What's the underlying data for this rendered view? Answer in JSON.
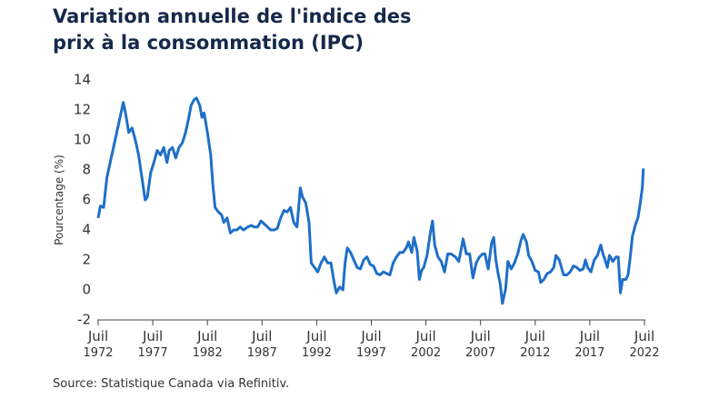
{
  "chart_data": {
    "type": "line",
    "title": "Variation annuelle de l'indice des prix à la consommation (IPC)",
    "y_label": "Pourcentage (%)",
    "source": "Source: Statistique Canada via Refinitiv.",
    "xlim": [
      1972.5,
      2022.5
    ],
    "ylim": [
      -2,
      14
    ],
    "yticks": [
      -2,
      0,
      2,
      4,
      6,
      8,
      10,
      12,
      14
    ],
    "xticks": [
      {
        "value": 1972.5,
        "label": "Juil 1972"
      },
      {
        "value": 1977.5,
        "label": "Juil 1977"
      },
      {
        "value": 1982.5,
        "label": "Juil 1982"
      },
      {
        "value": 1987.5,
        "label": "Juil 1987"
      },
      {
        "value": 1992.5,
        "label": "Juil 1992"
      },
      {
        "value": 1997.5,
        "label": "Juil 1997"
      },
      {
        "value": 2002.5,
        "label": "Juil 2002"
      },
      {
        "value": 2007.5,
        "label": "Juil 2007"
      },
      {
        "value": 2012.5,
        "label": "Juil 2012"
      },
      {
        "value": 2017.5,
        "label": "Juil 2017"
      },
      {
        "value": 2022.5,
        "label": "Juil 2022"
      }
    ],
    "x": [
      1972.5,
      1972.7,
      1973.0,
      1973.3,
      1973.6,
      1973.9,
      1974.2,
      1974.5,
      1974.8,
      1975.0,
      1975.3,
      1975.6,
      1975.9,
      1976.2,
      1976.5,
      1976.8,
      1977.0,
      1977.3,
      1977.6,
      1977.9,
      1978.2,
      1978.5,
      1978.8,
      1979.0,
      1979.3,
      1979.6,
      1979.9,
      1980.2,
      1980.5,
      1980.8,
      1981.0,
      1981.3,
      1981.5,
      1981.8,
      1982.0,
      1982.2,
      1982.5,
      1982.8,
      1983.0,
      1983.2,
      1983.5,
      1983.8,
      1984.0,
      1984.3,
      1984.6,
      1984.9,
      1985.2,
      1985.5,
      1985.8,
      1986.2,
      1986.5,
      1986.8,
      1987.1,
      1987.4,
      1987.7,
      1988.0,
      1988.3,
      1988.6,
      1988.9,
      1989.2,
      1989.5,
      1989.8,
      1990.1,
      1990.4,
      1990.7,
      1991.0,
      1991.2,
      1991.5,
      1991.8,
      1992.0,
      1992.3,
      1992.6,
      1992.9,
      1993.2,
      1993.5,
      1993.8,
      1994.1,
      1994.3,
      1994.6,
      1994.9,
      1995.1,
      1995.3,
      1995.6,
      1995.9,
      1996.2,
      1996.5,
      1996.8,
      1997.1,
      1997.4,
      1997.7,
      1998.0,
      1998.3,
      1998.6,
      1998.9,
      1999.2,
      1999.5,
      1999.8,
      2000.1,
      2000.4,
      2000.7,
      2000.9,
      2001.2,
      2001.4,
      2001.7,
      2001.9,
      2002.1,
      2002.3,
      2002.6,
      2002.9,
      2003.1,
      2003.3,
      2003.6,
      2003.9,
      2004.2,
      2004.5,
      2004.8,
      2005.2,
      2005.5,
      2005.7,
      2005.9,
      2006.2,
      2006.5,
      2006.8,
      2007.1,
      2007.4,
      2007.7,
      2007.9,
      2008.2,
      2008.5,
      2008.7,
      2008.9,
      2009.1,
      2009.3,
      2009.5,
      2009.8,
      2010.0,
      2010.3,
      2010.6,
      2010.9,
      2011.2,
      2011.4,
      2011.7,
      2011.9,
      2012.2,
      2012.5,
      2012.8,
      2013.0,
      2013.3,
      2013.6,
      2013.9,
      2014.2,
      2014.4,
      2014.7,
      2014.9,
      2015.1,
      2015.4,
      2015.7,
      2016.0,
      2016.3,
      2016.6,
      2016.9,
      2017.1,
      2017.3,
      2017.6,
      2017.9,
      2018.2,
      2018.5,
      2018.7,
      2018.9,
      2019.1,
      2019.3,
      2019.6,
      2019.9,
      2020.1,
      2020.3,
      2020.5,
      2020.8,
      2021.0,
      2021.2,
      2021.4,
      2021.7,
      2021.9,
      2022.1,
      2022.3,
      2022.4
    ],
    "series": [
      {
        "name": "IPC",
        "color": "#1f6fc8",
        "values": [
          4.8,
          5.6,
          5.5,
          7.5,
          8.5,
          9.5,
          10.5,
          11.5,
          12.5,
          11.8,
          10.5,
          10.8,
          10,
          9,
          7.5,
          6,
          6.2,
          7.8,
          8.5,
          9.3,
          9,
          9.5,
          8.5,
          9.3,
          9.5,
          8.8,
          9.5,
          9.8,
          10.5,
          11.5,
          12.3,
          12.7,
          12.8,
          12.3,
          11.5,
          11.8,
          10.5,
          9,
          7,
          5.5,
          5.2,
          5,
          4.5,
          4.8,
          3.8,
          4,
          4,
          4.2,
          4,
          4.2,
          4.3,
          4.2,
          4.2,
          4.6,
          4.4,
          4.2,
          4,
          4,
          4.1,
          4.8,
          5.3,
          5.2,
          5.5,
          4.5,
          4.2,
          6.8,
          6.2,
          5.8,
          4.5,
          1.8,
          1.5,
          1.2,
          1.8,
          2.2,
          1.8,
          1.8,
          0.5,
          -0.2,
          0.2,
          0,
          1.8,
          2.8,
          2.5,
          2,
          1.5,
          1.4,
          2,
          2.2,
          1.7,
          1.6,
          1.1,
          1,
          1.2,
          1.1,
          1,
          1.8,
          2.2,
          2.5,
          2.5,
          2.8,
          3.2,
          2.5,
          3.5,
          2.6,
          0.7,
          1.3,
          1.5,
          2.3,
          3.8,
          4.6,
          3,
          2.2,
          1.9,
          1.2,
          2.4,
          2.4,
          2.2,
          1.9,
          2.6,
          3.4,
          2.4,
          2.4,
          0.8,
          1.8,
          2.2,
          2.4,
          2.4,
          1.4,
          3.1,
          3.5,
          2,
          1.1,
          0.4,
          -0.9,
          0.1,
          1.9,
          1.4,
          1.8,
          2.4,
          3.3,
          3.7,
          3.2,
          2.3,
          1.9,
          1.3,
          1.2,
          0.5,
          0.7,
          1.1,
          1.2,
          1.5,
          2.3,
          2,
          1.5,
          1,
          1,
          1.2,
          1.6,
          1.5,
          1.3,
          1.4,
          2,
          1.5,
          1.2,
          2,
          2.3,
          3,
          2.4,
          2,
          1.5,
          2.3,
          1.9,
          2.2,
          2.2,
          -0.2,
          0.7,
          0.7,
          1,
          2.2,
          3.6,
          4.4,
          4.8,
          5.7,
          6.8,
          8.1
        ]
      }
    ]
  }
}
